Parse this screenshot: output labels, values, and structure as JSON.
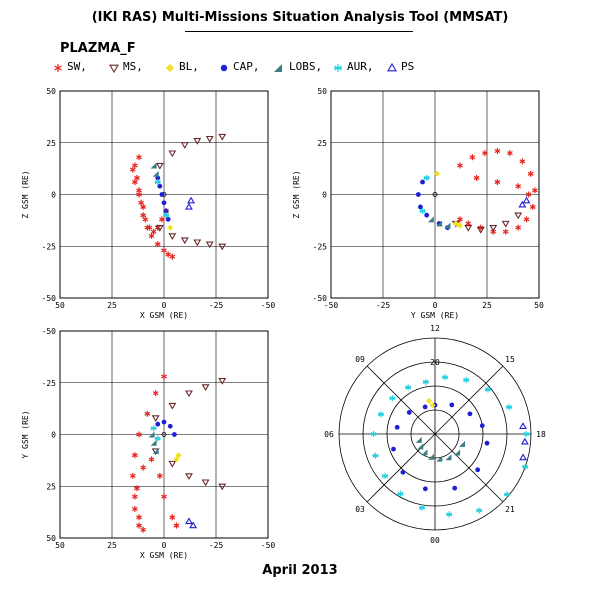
{
  "header": {
    "title": "(IKI RAS) Multi-Missions Situation Analysis Tool (MMSAT)",
    "subtitle": "PLAZMA_F",
    "footer": "April 2013"
  },
  "legend": [
    {
      "label": "SW,",
      "symbol": "star6",
      "color": "#e8231e"
    },
    {
      "label": "MS,",
      "symbol": "tri-down",
      "color": "#6b2a2a"
    },
    {
      "label": "BL,",
      "symbol": "diamond",
      "color": "#f2e219"
    },
    {
      "label": "CAP,",
      "symbol": "circle",
      "color": "#1f1fd6"
    },
    {
      "label": "LOBS,",
      "symbol": "tri-right",
      "color": "#3b7f86"
    },
    {
      "label": "AUR,",
      "symbol": "asterisk",
      "color": "#24cfe0"
    },
    {
      "label": "PS",
      "symbol": "tri-up",
      "color": "#1f1fd6"
    }
  ],
  "chart_data": [
    {
      "type": "scatter",
      "xlabel": "X GSM (RE)",
      "ylabel": "Z GSM (RE)",
      "xlim": [
        50,
        -50
      ],
      "ylim": [
        -50,
        50
      ],
      "xticks": [
        "50",
        "25",
        "0",
        "-25",
        "-50"
      ],
      "yticks": [
        "-50",
        "-25",
        "0",
        "25",
        "50"
      ],
      "grid": true,
      "series": [
        {
          "name": "SW,",
          "x": [
            12,
            14,
            13,
            12,
            11,
            10,
            8,
            6,
            3,
            0,
            -2,
            -4,
            15,
            14,
            12,
            10,
            9,
            7,
            5,
            3,
            1,
            -1
          ],
          "y": [
            18,
            14,
            8,
            2,
            -4,
            -10,
            -16,
            -20,
            -24,
            -27,
            -29,
            -30,
            12,
            6,
            0,
            -6,
            -12,
            -16,
            -18,
            -16,
            -12,
            -8
          ]
        },
        {
          "name": "MS,",
          "x": [
            2,
            -4,
            -10,
            -16,
            -22,
            -28,
            2,
            -4,
            -10,
            -16,
            -22,
            -28
          ],
          "y": [
            14,
            20,
            24,
            26,
            27,
            28,
            -16,
            -20,
            -22,
            -23,
            -24,
            -25
          ]
        },
        {
          "name": "BL,",
          "x": [
            -1,
            -3
          ],
          "y": [
            -10,
            -16
          ]
        },
        {
          "name": "CAP,",
          "x": [
            3,
            2,
            1,
            0,
            -1,
            -2
          ],
          "y": [
            8,
            4,
            0,
            -4,
            -8,
            -12
          ]
        },
        {
          "name": "LOBS,",
          "x": [
            5,
            4
          ],
          "y": [
            14,
            10
          ]
        },
        {
          "name": "AUR,",
          "x": [
            3,
            -1
          ],
          "y": [
            6,
            -10
          ]
        },
        {
          "name": "PS",
          "x": [
            -13,
            -12
          ],
          "y": [
            -3,
            -6
          ]
        }
      ]
    },
    {
      "type": "scatter",
      "xlabel": "Y GSM (RE)",
      "ylabel": "Z GSM (RE)",
      "xlim": [
        -50,
        50
      ],
      "ylim": [
        -50,
        50
      ],
      "xticks": [
        "-50",
        "-25",
        "0",
        "25",
        "50"
      ],
      "yticks": [
        "-50",
        "-25",
        "0",
        "25",
        "50"
      ],
      "grid": true,
      "series": [
        {
          "name": "SW,",
          "x": [
            12,
            18,
            24,
            30,
            36,
            42,
            46,
            48,
            47,
            44,
            40,
            34,
            28,
            22,
            16,
            12,
            20,
            30,
            40,
            45
          ],
          "y": [
            14,
            18,
            20,
            21,
            20,
            16,
            10,
            2,
            -6,
            -12,
            -16,
            -18,
            -18,
            -16,
            -14,
            -12,
            8,
            6,
            4,
            0
          ]
        },
        {
          "name": "MS,",
          "x": [
            10,
            16,
            22,
            28,
            34,
            40
          ],
          "y": [
            -14,
            -16,
            -17,
            -16,
            -14,
            -10
          ]
        },
        {
          "name": "BL,",
          "x": [
            1,
            10,
            12
          ],
          "y": [
            10,
            -14,
            -15
          ]
        },
        {
          "name": "CAP,",
          "x": [
            -6,
            -8,
            -7,
            -4,
            2,
            6
          ],
          "y": [
            6,
            0,
            -6,
            -10,
            -14,
            -16
          ]
        },
        {
          "name": "LOBS,",
          "x": [
            -2,
            2,
            6
          ],
          "y": [
            -12,
            -14,
            -15
          ]
        },
        {
          "name": "AUR,",
          "x": [
            -4,
            -6
          ],
          "y": [
            8,
            -8
          ]
        },
        {
          "name": "PS",
          "x": [
            42,
            44
          ],
          "y": [
            -5,
            -3
          ]
        }
      ]
    },
    {
      "type": "scatter",
      "xlabel": "X GSM (RE)",
      "ylabel": "Y GSM (RE)",
      "xlim": [
        50,
        -50
      ],
      "ylim": [
        -50,
        50
      ],
      "xticks": [
        "50",
        "25",
        "0",
        "-25",
        "-50"
      ],
      "yticks": [
        "-50",
        "-25",
        "0",
        "25",
        "50"
      ],
      "grid": true,
      "series": [
        {
          "name": "SW,",
          "x": [
            0,
            4,
            8,
            12,
            14,
            15,
            14,
            12,
            10,
            12,
            14,
            13,
            10,
            6,
            2,
            0,
            -4,
            -6
          ],
          "y": [
            -28,
            -20,
            -10,
            0,
            10,
            20,
            30,
            40,
            46,
            44,
            36,
            26,
            16,
            12,
            20,
            30,
            40,
            44
          ]
        },
        {
          "name": "MS,",
          "x": [
            4,
            -4,
            -12,
            -20,
            -28,
            4,
            -4,
            -12,
            -20,
            -28
          ],
          "y": [
            -8,
            -14,
            -20,
            -23,
            -26,
            8,
            14,
            20,
            23,
            25
          ]
        },
        {
          "name": "BL,",
          "x": [
            -7,
            -6
          ],
          "y": [
            10,
            12
          ]
        },
        {
          "name": "CAP,",
          "x": [
            3,
            0,
            -3,
            -5
          ],
          "y": [
            -5,
            -6,
            -4,
            0
          ]
        },
        {
          "name": "LOBS,",
          "x": [
            6,
            5,
            4
          ],
          "y": [
            0,
            4,
            8
          ]
        },
        {
          "name": "AUR,",
          "x": [
            5,
            3
          ],
          "y": [
            -3,
            2
          ]
        },
        {
          "name": "PS",
          "x": [
            -12,
            -14
          ],
          "y": [
            42,
            44
          ]
        }
      ]
    },
    {
      "type": "polar",
      "angle_labels": [
        "12",
        "09",
        "06",
        "03",
        "00",
        "21",
        "18",
        "15"
      ],
      "radial_labels": [
        "20"
      ],
      "ring_count": 4,
      "series": [
        {
          "name": "AUR,",
          "theta_deg": [
            100,
            80,
            60,
            40,
            20,
            0,
            -20,
            -40,
            -60,
            -80,
            -100,
            -120,
            -140,
            -160,
            -180,
            160,
            140,
            120
          ],
          "r": [
            0.55,
            0.6,
            0.65,
            0.72,
            0.82,
            0.95,
            1.0,
            0.98,
            0.92,
            0.85,
            0.78,
            0.72,
            0.68,
            0.66,
            0.64,
            0.6,
            0.58,
            0.56
          ]
        },
        {
          "name": "CAP,",
          "theta_deg": [
            90,
            60,
            30,
            10,
            -10,
            -40,
            -70,
            -100,
            -130,
            -160,
            -190,
            -220,
            -250
          ],
          "r": [
            0.3,
            0.35,
            0.42,
            0.5,
            0.55,
            0.58,
            0.6,
            0.58,
            0.52,
            0.46,
            0.4,
            0.35,
            0.3
          ]
        },
        {
          "name": "LOBS,",
          "theta_deg": [
            200,
            220,
            240,
            260,
            280,
            300,
            320,
            340
          ],
          "r": [
            0.18,
            0.2,
            0.22,
            0.24,
            0.26,
            0.28,
            0.3,
            0.3
          ]
        },
        {
          "name": "BL,",
          "theta_deg": [
            95,
            100
          ],
          "r": [
            0.3,
            0.35
          ]
        },
        {
          "name": "PS",
          "theta_deg": [
            5,
            -5,
            -15
          ],
          "r": [
            0.92,
            0.94,
            0.95
          ]
        }
      ]
    }
  ]
}
